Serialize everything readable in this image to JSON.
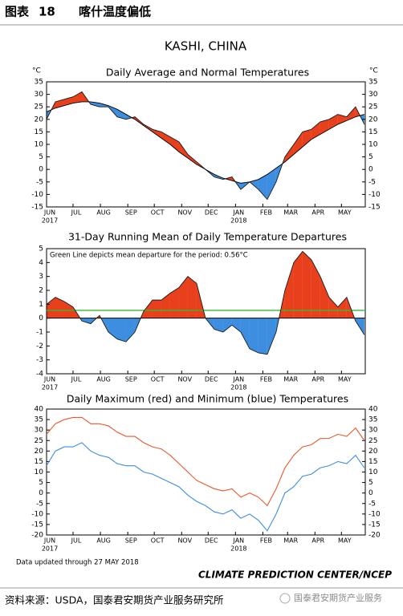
{
  "header": {
    "label": "图表",
    "number": "18",
    "title": "喀什温度偏低"
  },
  "page_title": "KASHI, CHINA",
  "footer": {
    "updated": "Data updated through 27 MAY 2018",
    "credit": "CLIMATE PREDICTION CENTER/NCEP",
    "source": "资料来源：USDA，国泰君安期货产业服务研究所",
    "watermark": "国泰君安期货产业服务"
  },
  "chart_data": [
    {
      "type": "line",
      "title": "Daily Average and Normal Temperatures",
      "ylabel": "°C",
      "y2label": "°C",
      "fill": "between",
      "right_ticks": true,
      "fill_colors": {
        "above": "#e8401c",
        "below": "#3d8ee0"
      },
      "x": [
        0,
        10,
        20,
        30,
        40,
        50,
        60,
        70,
        80,
        90,
        100,
        110,
        120,
        130,
        140,
        150,
        160,
        170,
        180,
        190,
        200,
        210,
        220,
        230,
        240,
        250,
        260,
        270,
        280,
        290,
        300,
        310,
        320,
        330,
        340,
        350,
        360
      ],
      "xlim": [
        0,
        361
      ],
      "xticks": [
        {
          "value": 0,
          "label": "JUN"
        },
        {
          "value": 30,
          "label": "JUL"
        },
        {
          "value": 61,
          "label": "AUG"
        },
        {
          "value": 92,
          "label": "SEP"
        },
        {
          "value": 122,
          "label": "OCT"
        },
        {
          "value": 153,
          "label": "NOV"
        },
        {
          "value": 183,
          "label": "DEC"
        },
        {
          "value": 214,
          "label": "JAN"
        },
        {
          "value": 245,
          "label": "FEB"
        },
        {
          "value": 273,
          "label": "MAR"
        },
        {
          "value": 304,
          "label": "APR"
        },
        {
          "value": 334,
          "label": "MAY"
        }
      ],
      "xyears": [
        {
          "value": 0,
          "label": "2017"
        },
        {
          "value": 214,
          "label": "2018"
        }
      ],
      "ylim": [
        -15,
        35
      ],
      "yticks": [
        -15,
        -10,
        -5,
        0,
        5,
        10,
        15,
        20,
        25,
        30,
        35
      ],
      "series": [
        {
          "color": "#1a1a1a",
          "values": [
            20,
            27,
            28,
            29,
            31,
            26,
            25,
            25,
            21,
            20,
            21,
            18,
            16,
            15,
            13,
            11,
            6,
            3,
            0,
            -3,
            -4,
            -3,
            -8,
            -5,
            -8,
            -12,
            -5,
            5,
            10,
            15,
            16,
            19,
            20,
            22,
            21,
            25,
            18
          ]
        },
        {
          "color": "#000000",
          "values": [
            23,
            24.5,
            25.5,
            26.5,
            27,
            27,
            26.5,
            25.5,
            24,
            22,
            20,
            17.5,
            15,
            12.5,
            10,
            7,
            4.5,
            2,
            0,
            -2,
            -3.5,
            -4.5,
            -5.5,
            -5,
            -4,
            -2,
            0.5,
            3,
            6,
            9,
            12,
            14,
            16,
            18,
            19.5,
            21,
            22
          ]
        }
      ]
    },
    {
      "type": "area",
      "title": "31-Day Running Mean of Daily Temperature Departures",
      "fill": "zero",
      "right_ticks": false,
      "fill_colors": {
        "above": "#e8401c",
        "below": "#3d8ee0"
      },
      "annotation": "Green Line depicts mean departure for the period: 0.56°C",
      "mean_line": {
        "value": 0.56,
        "color": "#33bb33"
      },
      "x": [
        0,
        10,
        20,
        30,
        40,
        50,
        60,
        70,
        80,
        90,
        100,
        110,
        120,
        130,
        140,
        150,
        160,
        170,
        180,
        190,
        200,
        210,
        220,
        230,
        240,
        250,
        260,
        270,
        280,
        290,
        300,
        310,
        320,
        330,
        340,
        350,
        360
      ],
      "xlim": [
        0,
        361
      ],
      "xticks": [
        {
          "value": 0,
          "label": "JUN"
        },
        {
          "value": 30,
          "label": "JUL"
        },
        {
          "value": 61,
          "label": "AUG"
        },
        {
          "value": 92,
          "label": "SEP"
        },
        {
          "value": 122,
          "label": "OCT"
        },
        {
          "value": 153,
          "label": "NOV"
        },
        {
          "value": 183,
          "label": "DEC"
        },
        {
          "value": 214,
          "label": "JAN"
        },
        {
          "value": 245,
          "label": "FEB"
        },
        {
          "value": 273,
          "label": "MAR"
        },
        {
          "value": 304,
          "label": "APR"
        },
        {
          "value": 334,
          "label": "MAY"
        }
      ],
      "xyears": [
        {
          "value": 0,
          "label": "2017"
        },
        {
          "value": 214,
          "label": "2018"
        }
      ],
      "ylim": [
        -4,
        5
      ],
      "yticks": [
        -4,
        -3,
        -2,
        -1,
        0,
        1,
        2,
        3,
        4,
        5
      ],
      "series": [
        {
          "color": "#1a1a1a",
          "values": [
            1,
            1.5,
            1.2,
            0.8,
            -0.2,
            -0.4,
            0.2,
            -1,
            -1.5,
            -1.7,
            -1,
            0.5,
            1.3,
            1.3,
            1.8,
            2.2,
            3,
            2.5,
            0,
            -0.8,
            -1,
            -0.5,
            -1,
            -2.2,
            -2.5,
            -2.6,
            -1,
            2,
            4,
            4.8,
            4.2,
            3,
            1.5,
            0.8,
            1.5,
            -0.2,
            -1.2
          ]
        }
      ]
    },
    {
      "type": "line",
      "title": "Daily Maximum (red) and Minimum (blue) Temperatures",
      "right_ticks": true,
      "x": [
        0,
        10,
        20,
        30,
        40,
        50,
        60,
        70,
        80,
        90,
        100,
        110,
        120,
        130,
        140,
        150,
        160,
        170,
        180,
        190,
        200,
        210,
        220,
        230,
        240,
        250,
        260,
        270,
        280,
        290,
        300,
        310,
        320,
        330,
        340,
        350,
        360
      ],
      "xlim": [
        0,
        361
      ],
      "xticks": [
        {
          "value": 0,
          "label": "JUN"
        },
        {
          "value": 30,
          "label": "JUL"
        },
        {
          "value": 61,
          "label": "AUG"
        },
        {
          "value": 92,
          "label": "SEP"
        },
        {
          "value": 122,
          "label": "OCT"
        },
        {
          "value": 153,
          "label": "NOV"
        },
        {
          "value": 183,
          "label": "DEC"
        },
        {
          "value": 214,
          "label": "JAN"
        },
        {
          "value": 245,
          "label": "FEB"
        },
        {
          "value": 273,
          "label": "MAR"
        },
        {
          "value": 304,
          "label": "APR"
        },
        {
          "value": 334,
          "label": "MAY"
        }
      ],
      "xyears": [
        {
          "value": 0,
          "label": "2017"
        },
        {
          "value": 214,
          "label": "2018"
        }
      ],
      "ylim": [
        -20,
        40
      ],
      "yticks": [
        -20,
        -15,
        -10,
        -5,
        0,
        5,
        10,
        15,
        20,
        25,
        30,
        35,
        40
      ],
      "series": [
        {
          "color": "#e8582c",
          "values": [
            28,
            33,
            35,
            36,
            36,
            33,
            33,
            32,
            29,
            27,
            27,
            24,
            22,
            21,
            18,
            14,
            10,
            6,
            4,
            2,
            1,
            2,
            -2,
            0,
            -2,
            -6,
            2,
            12,
            18,
            22,
            23,
            26,
            26,
            28,
            27,
            31,
            25
          ]
        },
        {
          "color": "#3d8ee0",
          "values": [
            13,
            20,
            22,
            22,
            24,
            20,
            18,
            17,
            14,
            13,
            13,
            10,
            9,
            7,
            5,
            3,
            -1,
            -4,
            -6,
            -9,
            -10,
            -8,
            -12,
            -10,
            -13,
            -18,
            -10,
            0,
            3,
            8,
            9,
            12,
            13,
            15,
            14,
            18,
            12
          ]
        }
      ]
    }
  ]
}
